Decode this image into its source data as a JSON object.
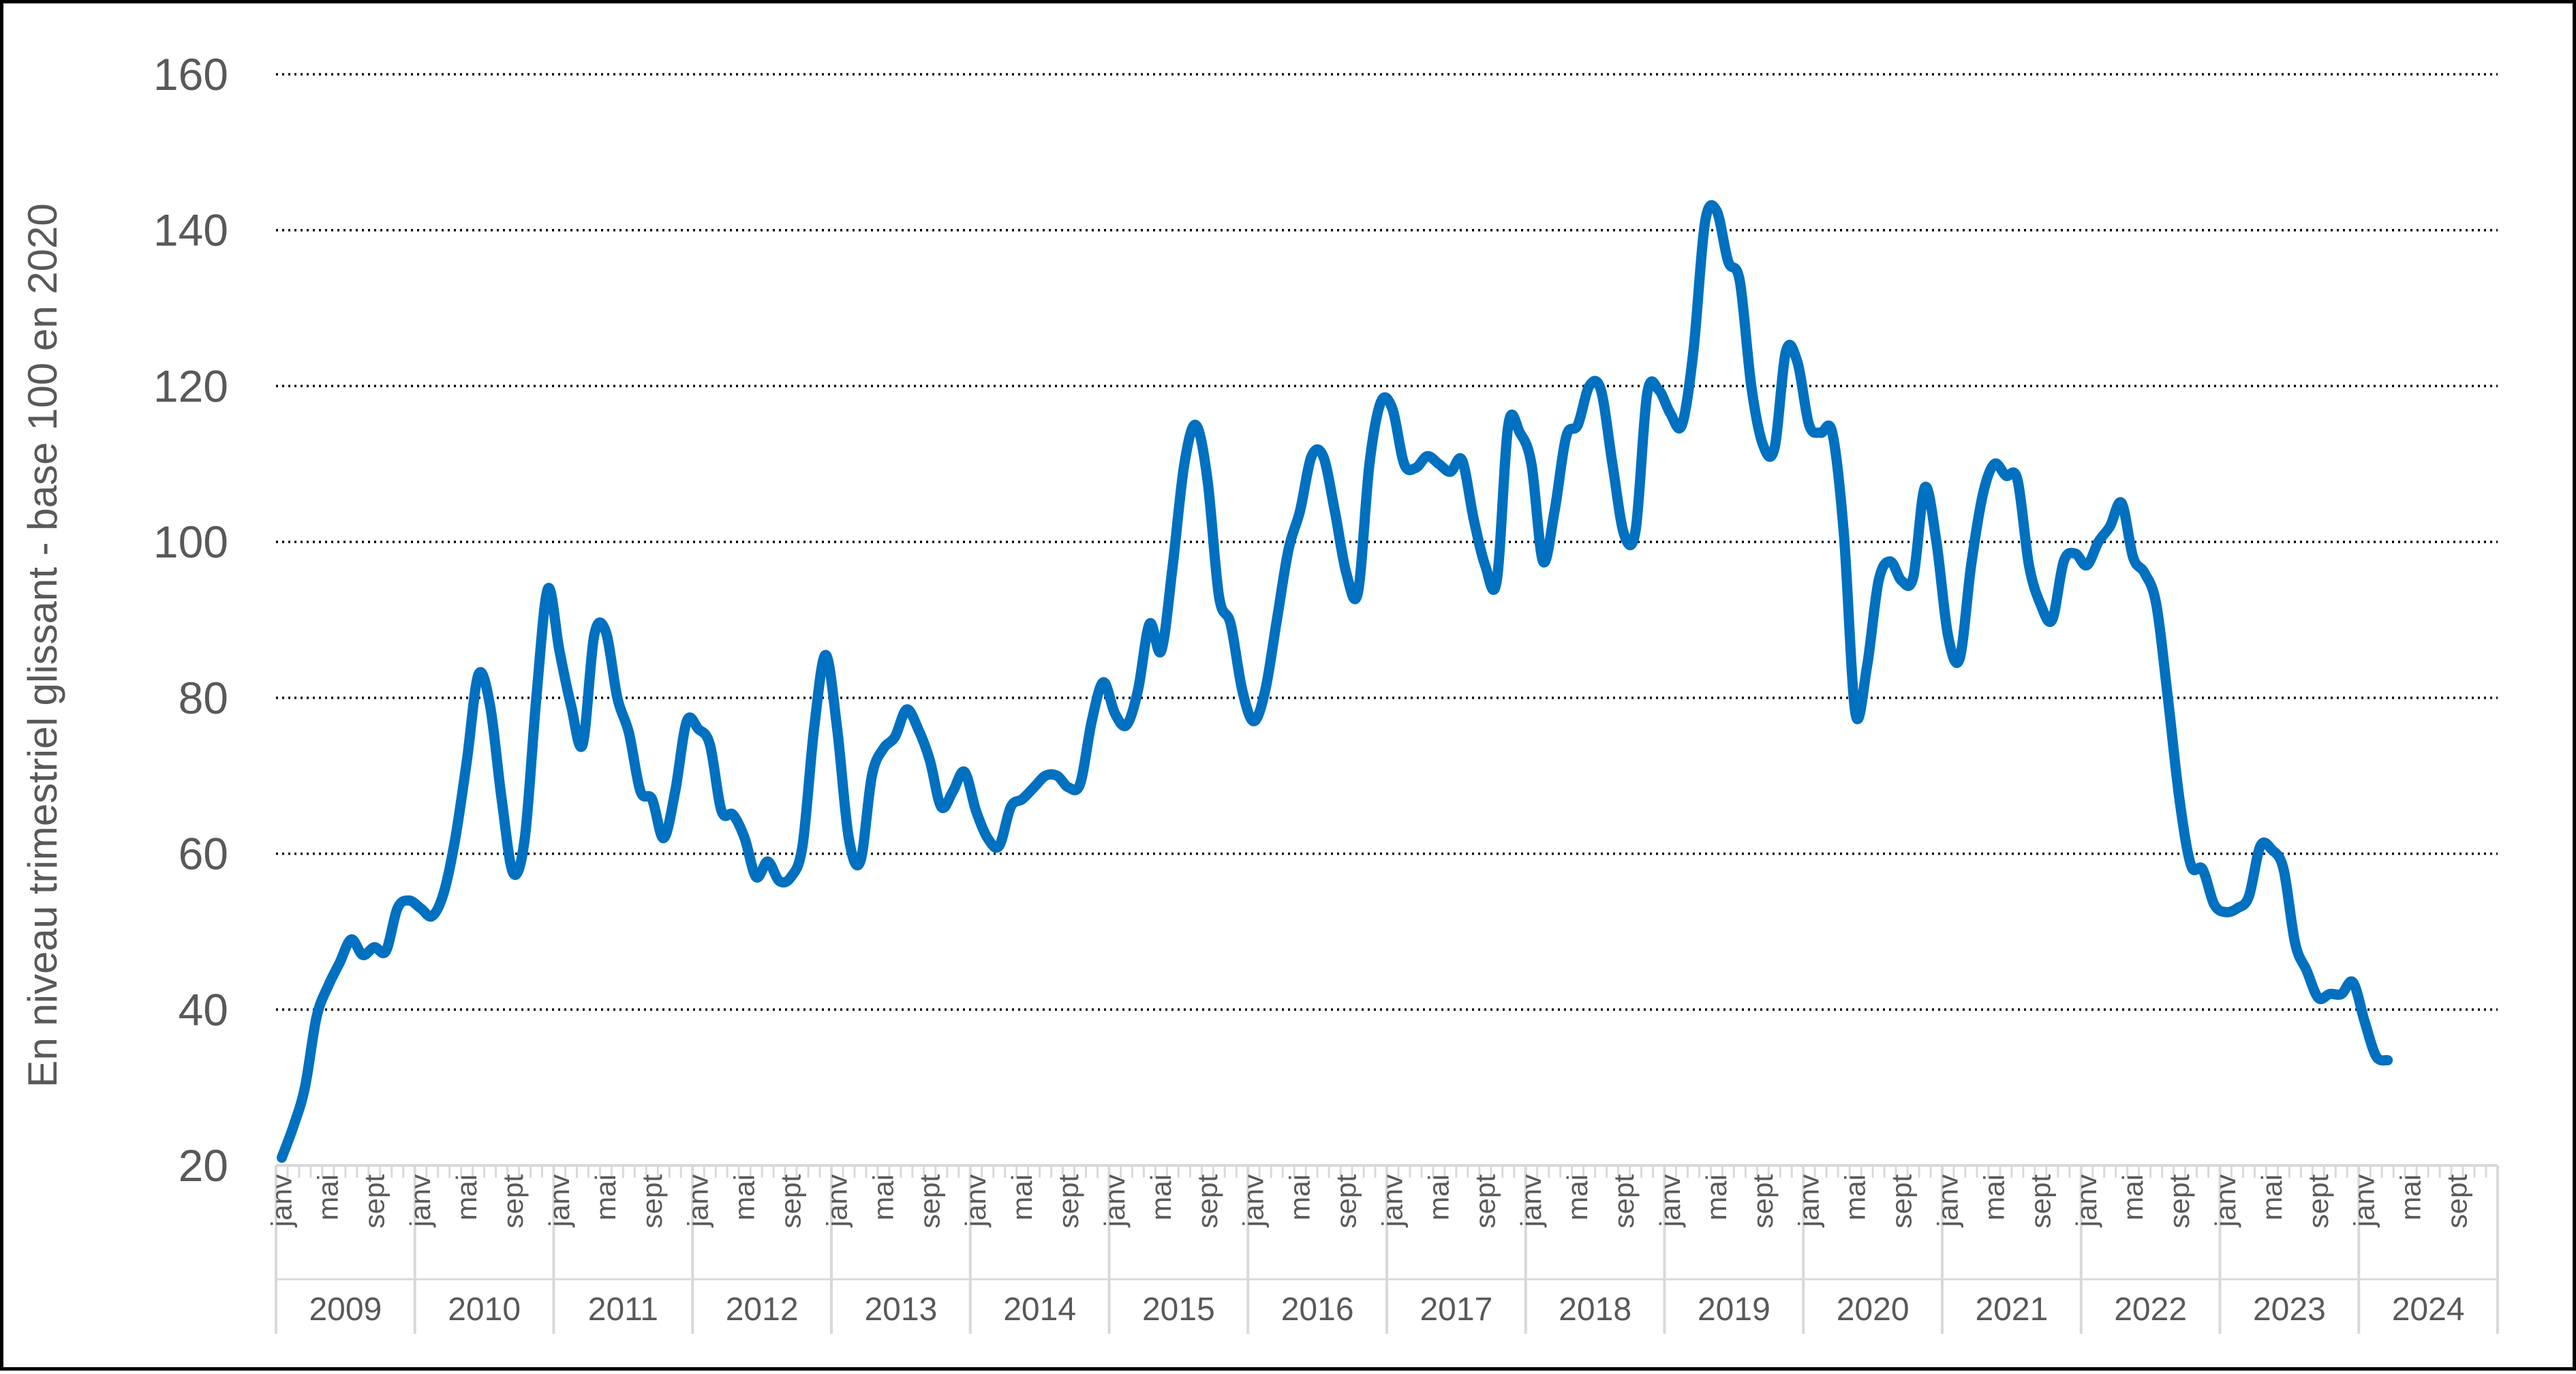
{
  "chart_data": {
    "type": "line",
    "title": "",
    "ylabel": "En niveau trimestriel glissant - base 100 en 2020",
    "xlabel": "",
    "ylim": [
      20,
      160
    ],
    "yticks": [
      20,
      40,
      60,
      80,
      100,
      120,
      140,
      160
    ],
    "grid": "horizontal dotted",
    "years": [
      "2009",
      "2010",
      "2011",
      "2012",
      "2013",
      "2014",
      "2015",
      "2016",
      "2017",
      "2018",
      "2019",
      "2020",
      "2021",
      "2022",
      "2023",
      "2024"
    ],
    "month_labels": [
      "janv",
      "mai",
      "sept"
    ],
    "series": [
      {
        "color": "#0070C0",
        "start": "2009-01",
        "frequency": "monthly",
        "values": [
          21,
          25,
          30,
          39,
          43,
          46,
          49,
          47,
          48,
          47.5,
          53,
          54,
          53,
          52,
          55,
          62,
          72,
          83,
          79,
          67,
          57.5,
          62,
          80,
          94,
          86,
          79,
          74,
          88,
          88.5,
          80,
          75.5,
          68,
          67,
          62,
          68,
          77,
          76,
          74,
          65.5,
          65,
          62,
          57,
          59,
          56.5,
          57,
          61,
          76,
          85.5,
          76,
          62,
          59,
          70,
          73.5,
          75,
          78.5,
          76,
          72,
          66,
          68,
          70.5,
          65.5,
          62,
          61,
          66,
          67,
          68.5,
          70,
          70,
          68.5,
          69,
          77,
          82,
          78,
          76.5,
          81,
          89.5,
          86,
          97,
          110,
          115,
          108,
          93,
          89.5,
          81,
          77,
          81,
          90,
          99,
          104,
          111,
          111,
          104,
          96,
          93.5,
          110,
          118,
          117,
          110,
          109.5,
          111,
          110,
          109,
          110.5,
          103,
          97,
          95,
          115,
          114,
          110,
          97.5,
          104,
          113.5,
          115,
          120,
          119.5,
          110,
          101,
          101.5,
          119,
          119.5,
          116.5,
          115,
          124.5,
          141,
          142.5,
          136,
          133.5,
          120,
          112.5,
          112,
          124.5,
          123,
          115,
          114,
          114,
          101,
          78,
          84,
          95,
          97.5,
          95,
          95.5,
          107,
          100,
          88,
          85,
          97,
          106,
          110,
          108.5,
          108,
          97,
          92,
          90,
          97.5,
          98.5,
          97,
          100,
          102,
          105,
          98,
          96,
          92,
          80,
          67,
          58.5,
          58,
          53.5,
          52.5,
          53,
          54.5,
          61,
          60.5,
          58,
          48.5,
          45,
          41.5,
          42,
          42,
          43.5,
          38.5,
          34,
          33.5
        ]
      }
    ]
  }
}
